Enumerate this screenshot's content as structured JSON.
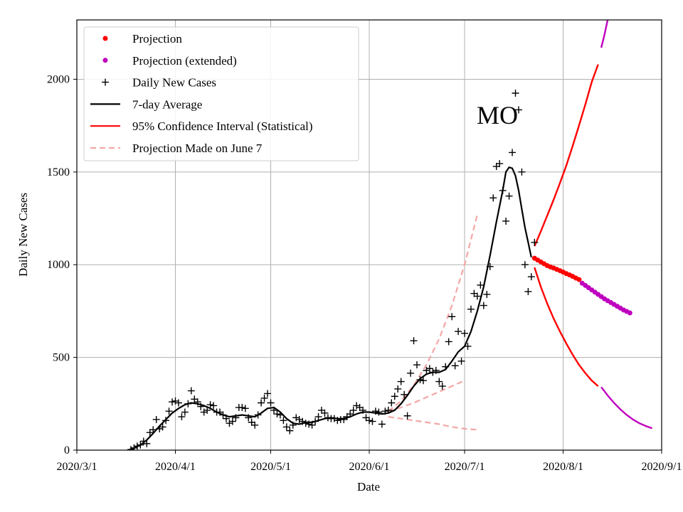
{
  "chart_data": {
    "type": "line",
    "title": "",
    "annotation": "MO",
    "xlabel": "Date",
    "ylabel": "Daily New Cases",
    "xlim": [
      0,
      184
    ],
    "ylim": [
      0,
      2320
    ],
    "grid": true,
    "legend_position": "top-left",
    "x_ticks": [
      {
        "day": 0,
        "label": "2020/3/1"
      },
      {
        "day": 31,
        "label": "2020/4/1"
      },
      {
        "day": 61,
        "label": "2020/5/1"
      },
      {
        "day": 92,
        "label": "2020/6/1"
      },
      {
        "day": 122,
        "label": "2020/7/1"
      },
      {
        "day": 153,
        "label": "2020/8/1"
      },
      {
        "day": 184,
        "label": "2020/9/1"
      }
    ],
    "y_ticks": [
      {
        "value": 0,
        "label": "0"
      },
      {
        "value": 500,
        "label": "500"
      },
      {
        "value": 1000,
        "label": "1000"
      },
      {
        "value": 1500,
        "label": "1500"
      },
      {
        "value": 2000,
        "label": "2000"
      }
    ],
    "legend": [
      {
        "key": "projection",
        "label": "Projection",
        "color": "#ff0000",
        "marker": "dot"
      },
      {
        "key": "projection_extended",
        "label": "Projection (extended)",
        "color": "#bf00bf",
        "marker": "dot"
      },
      {
        "key": "daily",
        "label": "Daily New Cases",
        "color": "#000000",
        "marker": "plus"
      },
      {
        "key": "avg7",
        "label": "7-day Average",
        "color": "#000000",
        "marker": "line"
      },
      {
        "key": "ci",
        "label": "95% Confidence Interval (Statistical)",
        "color": "#ff0000",
        "marker": "line"
      },
      {
        "key": "june7",
        "label": "Projection Made on June 7",
        "color": "#f4a6a6",
        "marker": "dash"
      }
    ],
    "series": {
      "daily": [
        [
          17,
          3
        ],
        [
          18,
          12
        ],
        [
          19,
          22
        ],
        [
          20,
          28
        ],
        [
          21,
          48
        ],
        [
          22,
          35
        ],
        [
          23,
          95
        ],
        [
          24,
          110
        ],
        [
          25,
          165
        ],
        [
          26,
          115
        ],
        [
          27,
          125
        ],
        [
          28,
          160
        ],
        [
          29,
          210
        ],
        [
          30,
          260
        ],
        [
          31,
          265
        ],
        [
          32,
          255
        ],
        [
          33,
          180
        ],
        [
          34,
          205
        ],
        [
          35,
          250
        ],
        [
          36,
          320
        ],
        [
          37,
          275
        ],
        [
          38,
          260
        ],
        [
          39,
          235
        ],
        [
          40,
          205
        ],
        [
          41,
          215
        ],
        [
          42,
          245
        ],
        [
          43,
          240
        ],
        [
          44,
          205
        ],
        [
          45,
          205
        ],
        [
          46,
          190
        ],
        [
          47,
          170
        ],
        [
          48,
          145
        ],
        [
          49,
          155
        ],
        [
          50,
          175
        ],
        [
          51,
          230
        ],
        [
          52,
          230
        ],
        [
          53,
          225
        ],
        [
          54,
          175
        ],
        [
          55,
          150
        ],
        [
          56,
          135
        ],
        [
          57,
          190
        ],
        [
          58,
          255
        ],
        [
          59,
          280
        ],
        [
          60,
          305
        ],
        [
          61,
          255
        ],
        [
          62,
          215
        ],
        [
          63,
          195
        ],
        [
          64,
          190
        ],
        [
          65,
          160
        ],
        [
          66,
          125
        ],
        [
          67,
          105
        ],
        [
          68,
          135
        ],
        [
          69,
          175
        ],
        [
          70,
          165
        ],
        [
          71,
          155
        ],
        [
          72,
          145
        ],
        [
          73,
          140
        ],
        [
          74,
          135
        ],
        [
          75,
          155
        ],
        [
          76,
          180
        ],
        [
          77,
          215
        ],
        [
          78,
          200
        ],
        [
          79,
          175
        ],
        [
          80,
          170
        ],
        [
          81,
          170
        ],
        [
          82,
          160
        ],
        [
          83,
          165
        ],
        [
          84,
          165
        ],
        [
          85,
          180
        ],
        [
          86,
          195
        ],
        [
          87,
          215
        ],
        [
          88,
          240
        ],
        [
          89,
          230
        ],
        [
          90,
          215
        ],
        [
          91,
          175
        ],
        [
          92,
          160
        ],
        [
          93,
          155
        ],
        [
          94,
          210
        ],
        [
          95,
          205
        ],
        [
          96,
          140
        ],
        [
          97,
          210
        ],
        [
          98,
          215
        ],
        [
          99,
          255
        ],
        [
          100,
          290
        ],
        [
          101,
          330
        ],
        [
          102,
          370
        ],
        [
          103,
          300
        ],
        [
          104,
          185
        ],
        [
          105,
          415
        ],
        [
          106,
          590
        ],
        [
          107,
          460
        ],
        [
          108,
          380
        ],
        [
          109,
          375
        ],
        [
          110,
          430
        ],
        [
          111,
          440
        ],
        [
          112,
          420
        ],
        [
          113,
          430
        ],
        [
          114,
          370
        ],
        [
          115,
          345
        ],
        [
          116,
          450
        ],
        [
          117,
          585
        ],
        [
          118,
          720
        ],
        [
          119,
          455
        ],
        [
          120,
          640
        ],
        [
          121,
          480
        ],
        [
          122,
          630
        ],
        [
          123,
          560
        ],
        [
          124,
          760
        ],
        [
          125,
          845
        ],
        [
          126,
          830
        ],
        [
          127,
          890
        ],
        [
          128,
          780
        ],
        [
          129,
          840
        ],
        [
          130,
          990
        ],
        [
          131,
          1360
        ],
        [
          132,
          1530
        ],
        [
          133,
          1545
        ],
        [
          134,
          1400
        ],
        [
          135,
          1235
        ],
        [
          136,
          1370
        ],
        [
          137,
          1605
        ],
        [
          138,
          1925
        ],
        [
          139,
          1835
        ],
        [
          140,
          1500
        ],
        [
          141,
          1000
        ],
        [
          142,
          855
        ],
        [
          143,
          935
        ],
        [
          144,
          1120
        ]
      ],
      "avg7": [
        [
          16,
          0
        ],
        [
          18,
          10
        ],
        [
          20,
          28
        ],
        [
          22,
          55
        ],
        [
          24,
          90
        ],
        [
          26,
          130
        ],
        [
          28,
          165
        ],
        [
          30,
          200
        ],
        [
          32,
          225
        ],
        [
          34,
          245
        ],
        [
          36,
          255
        ],
        [
          38,
          250
        ],
        [
          40,
          240
        ],
        [
          42,
          225
        ],
        [
          44,
          205
        ],
        [
          46,
          190
        ],
        [
          48,
          180
        ],
        [
          50,
          185
        ],
        [
          52,
          190
        ],
        [
          54,
          185
        ],
        [
          56,
          180
        ],
        [
          58,
          200
        ],
        [
          60,
          225
        ],
        [
          62,
          230
        ],
        [
          64,
          205
        ],
        [
          66,
          170
        ],
        [
          68,
          145
        ],
        [
          70,
          140
        ],
        [
          72,
          150
        ],
        [
          74,
          150
        ],
        [
          76,
          160
        ],
        [
          78,
          170
        ],
        [
          80,
          175
        ],
        [
          82,
          170
        ],
        [
          84,
          170
        ],
        [
          86,
          180
        ],
        [
          88,
          195
        ],
        [
          90,
          205
        ],
        [
          92,
          205
        ],
        [
          94,
          200
        ],
        [
          96,
          195
        ],
        [
          98,
          200
        ],
        [
          100,
          215
        ],
        [
          102,
          250
        ],
        [
          104,
          295
        ],
        [
          106,
          345
        ],
        [
          108,
          385
        ],
        [
          110,
          410
        ],
        [
          112,
          420
        ],
        [
          114,
          420
        ],
        [
          116,
          435
        ],
        [
          118,
          480
        ],
        [
          120,
          530
        ],
        [
          122,
          560
        ],
        [
          124,
          640
        ],
        [
          126,
          750
        ],
        [
          128,
          880
        ],
        [
          130,
          1050
        ],
        [
          132,
          1230
        ],
        [
          134,
          1400
        ],
        [
          135,
          1500
        ],
        [
          136,
          1525
        ],
        [
          137,
          1520
        ],
        [
          138,
          1480
        ],
        [
          139,
          1400
        ],
        [
          140,
          1300
        ],
        [
          141,
          1200
        ],
        [
          142,
          1120
        ],
        [
          143,
          1040
        ]
      ],
      "projection": [
        [
          144,
          1035
        ],
        [
          145,
          1025
        ],
        [
          146,
          1015
        ],
        [
          147,
          1005
        ],
        [
          148,
          995
        ],
        [
          149,
          988
        ],
        [
          150,
          982
        ],
        [
          151,
          975
        ],
        [
          152,
          968
        ],
        [
          153,
          960
        ],
        [
          154,
          952
        ],
        [
          155,
          945
        ],
        [
          156,
          937
        ],
        [
          157,
          928
        ],
        [
          158,
          920
        ]
      ],
      "projection_extended": [
        [
          159,
          900
        ],
        [
          160,
          888
        ],
        [
          161,
          876
        ],
        [
          162,
          864
        ],
        [
          163,
          852
        ],
        [
          164,
          840
        ],
        [
          165,
          828
        ],
        [
          166,
          816
        ],
        [
          167,
          806
        ],
        [
          168,
          796
        ],
        [
          169,
          786
        ],
        [
          170,
          776
        ],
        [
          171,
          766
        ],
        [
          172,
          756
        ],
        [
          173,
          748
        ],
        [
          174,
          740
        ]
      ],
      "ci_upper": [
        [
          144,
          1100
        ],
        [
          146,
          1180
        ],
        [
          148,
          1265
        ],
        [
          150,
          1350
        ],
        [
          152,
          1440
        ],
        [
          154,
          1535
        ],
        [
          156,
          1640
        ],
        [
          158,
          1750
        ],
        [
          160,
          1865
        ],
        [
          162,
          1985
        ],
        [
          164,
          2080
        ]
      ],
      "ci_lower": [
        [
          144,
          985
        ],
        [
          146,
          880
        ],
        [
          148,
          790
        ],
        [
          150,
          710
        ],
        [
          152,
          640
        ],
        [
          154,
          575
        ],
        [
          156,
          515
        ],
        [
          158,
          460
        ],
        [
          160,
          415
        ],
        [
          162,
          375
        ],
        [
          164,
          345
        ]
      ],
      "ci_upper_ext": [
        [
          165,
          2170
        ],
        [
          166,
          2240
        ],
        [
          167,
          2320
        ]
      ],
      "ci_lower_ext": [
        [
          165,
          340
        ],
        [
          167,
          295
        ],
        [
          169,
          255
        ],
        [
          171,
          220
        ],
        [
          173,
          190
        ],
        [
          175,
          165
        ],
        [
          177,
          145
        ],
        [
          179,
          130
        ],
        [
          181,
          118
        ]
      ],
      "june7_upper": [
        [
          98,
          210
        ],
        [
          102,
          265
        ],
        [
          106,
          350
        ],
        [
          110,
          460
        ],
        [
          114,
          600
        ],
        [
          118,
          780
        ],
        [
          122,
          1000
        ],
        [
          126,
          1270
        ]
      ],
      "june7_mid": [
        [
          98,
          210
        ],
        [
          102,
          230
        ],
        [
          106,
          255
        ],
        [
          110,
          285
        ],
        [
          114,
          315
        ],
        [
          118,
          345
        ],
        [
          122,
          375
        ]
      ],
      "june7_lower": [
        [
          98,
          180
        ],
        [
          102,
          170
        ],
        [
          106,
          160
        ],
        [
          110,
          150
        ],
        [
          114,
          140
        ],
        [
          118,
          125
        ],
        [
          122,
          115
        ],
        [
          126,
          110
        ]
      ]
    }
  }
}
